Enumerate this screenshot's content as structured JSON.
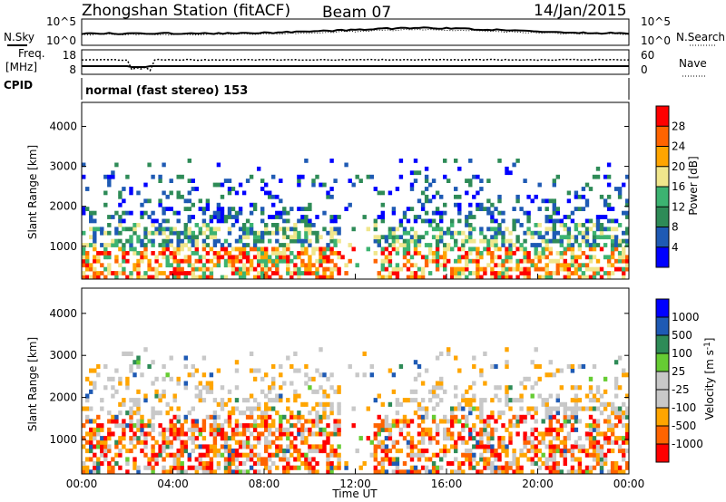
{
  "header": {
    "station": "Zhongshan Station (fitACF)",
    "beam": "Beam 07",
    "date": "14/Jan/2015"
  },
  "panel_labels": {
    "nsky": "N.Sky",
    "nsearch": "N.Search",
    "freq_line1": "Freq.",
    "freq_line2": "[MHz]",
    "nave": "Nave",
    "cpid": "CPID",
    "cpid_value": "normal (fast stereo) 153",
    "noise_tick_hi": "10^5",
    "noise_tick_lo": "10^0",
    "freq_tick_hi": "18",
    "freq_tick_lo": "8",
    "nave_tick_hi": "60",
    "nave_tick_lo": "0"
  },
  "colors": {
    "power_scale": [
      "#0000ff",
      "#1e5ab4",
      "#2e8b57",
      "#3cb371",
      "#f0e68c",
      "#ffa500",
      "#ff6400",
      "#ff0000"
    ],
    "velocity_scale": [
      "#ff0000",
      "#ff6400",
      "#ffa500",
      "#c8c8c8",
      "#c8c8c8",
      "#66cc33",
      "#2e8b57",
      "#1e5ab4",
      "#0000ff"
    ]
  },
  "chart_data": [
    {
      "type": "heatmap",
      "title": "",
      "ylabel": "Slant Range [km]",
      "xlabel": "",
      "ylim": [
        180,
        4600
      ],
      "y_ticks": [
        "1000",
        "2000",
        "3000",
        "4000"
      ],
      "y_tick_values": [
        1000,
        2000,
        3000,
        4000
      ],
      "colorbar_label": "Power [dB]",
      "colorbar_ticks": [
        "4",
        "8",
        "12",
        "16",
        "20",
        "24",
        "28"
      ],
      "colorbar_range": [
        0,
        32
      ]
    },
    {
      "type": "heatmap",
      "title": "",
      "xlabel": "Time UT",
      "ylabel": "Slant Range [km]",
      "ylim": [
        180,
        4600
      ],
      "x_ticks": [
        "00:00",
        "04:00",
        "08:00",
        "12:00",
        "16:00",
        "20:00",
        "00:00"
      ],
      "y_ticks": [
        "1000",
        "2000",
        "3000",
        "4000"
      ],
      "y_tick_values": [
        1000,
        2000,
        3000,
        4000
      ],
      "colorbar_label": "Velocity [m s",
      "colorbar_label_sup": "-1",
      "colorbar_ticks": [
        "-1000",
        "-500",
        "-100",
        "-25",
        "25",
        "100",
        "500",
        "1000"
      ]
    }
  ]
}
